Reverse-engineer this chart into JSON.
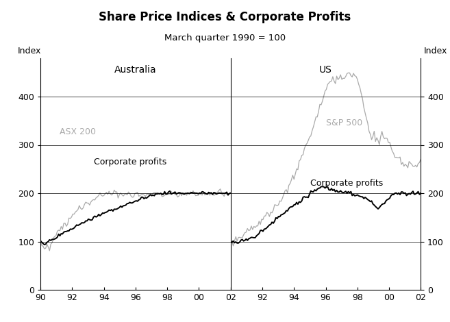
{
  "title": "Share Price Indices & Corporate Profits",
  "subtitle": "March quarter 1990 = 100",
  "color_index": "#aaaaaa",
  "color_profit": "#000000",
  "ylim": [
    0,
    480
  ],
  "yticks": [
    0,
    100,
    200,
    300,
    400
  ],
  "aus_asx200": [
    100,
    95,
    88,
    82,
    92,
    98,
    88,
    82,
    95,
    100,
    105,
    108,
    112,
    118,
    122,
    125,
    130,
    128,
    135,
    138,
    132,
    138,
    145,
    148,
    152,
    158,
    155,
    160,
    162,
    165,
    168,
    170,
    168,
    172,
    175,
    178,
    180,
    182,
    178,
    180,
    183,
    185,
    188,
    190,
    192,
    195,
    198,
    195,
    192,
    195,
    198,
    200,
    202,
    205,
    200,
    198,
    200,
    202,
    205,
    200,
    195,
    198,
    200,
    195,
    192,
    195,
    200,
    198,
    200,
    200,
    198,
    195,
    195,
    198,
    200,
    200,
    195,
    195,
    195,
    198,
    195,
    195,
    198,
    200,
    200,
    198,
    198,
    200,
    200,
    200,
    200,
    200,
    200,
    200,
    198,
    198,
    200,
    200,
    200,
    200,
    200,
    200,
    200,
    200,
    200,
    198,
    195,
    195,
    198,
    200,
    198,
    200,
    200,
    200,
    200,
    200,
    202,
    200,
    200,
    200,
    198,
    195,
    195,
    195,
    195,
    195,
    198,
    200,
    200,
    200,
    200,
    200,
    200,
    200,
    200,
    200,
    200,
    200,
    200,
    200,
    200,
    200,
    200,
    200,
    200,
    200,
    200,
    200
  ],
  "aus_corp": [
    100,
    98,
    96,
    95,
    97,
    99,
    100,
    101,
    102,
    103,
    105,
    107,
    108,
    110,
    112,
    113,
    115,
    117,
    118,
    120,
    121,
    122,
    123,
    125,
    126,
    128,
    130,
    131,
    132,
    133,
    135,
    136,
    137,
    138,
    140,
    141,
    142,
    144,
    145,
    146,
    147,
    148,
    150,
    151,
    153,
    154,
    155,
    157,
    158,
    159,
    160,
    161,
    162,
    163,
    164,
    165,
    166,
    167,
    168,
    169,
    170,
    171,
    172,
    173,
    174,
    175,
    176,
    177,
    178,
    179,
    180,
    181,
    182,
    183,
    184,
    185,
    186,
    187,
    188,
    189,
    190,
    191,
    192,
    193,
    194,
    195,
    196,
    197,
    198,
    199,
    200,
    200,
    200,
    200,
    200,
    200,
    200,
    200,
    200,
    200,
    200,
    200,
    200,
    200,
    200,
    200,
    200,
    200,
    200,
    200,
    200,
    200,
    200,
    200,
    200,
    200,
    200,
    200,
    200,
    200,
    200,
    200,
    200,
    200,
    200,
    200,
    200,
    200,
    200,
    200,
    200,
    200,
    200,
    200,
    200,
    200,
    200,
    200,
    200,
    200,
    200,
    200,
    200,
    200,
    200,
    200,
    200,
    200
  ],
  "us_sp500": [
    100,
    102,
    98,
    100,
    103,
    107,
    105,
    110,
    108,
    112,
    115,
    113,
    117,
    120,
    118,
    122,
    125,
    123,
    128,
    130,
    132,
    135,
    138,
    140,
    143,
    146,
    148,
    150,
    153,
    155,
    158,
    161,
    164,
    167,
    170,
    173,
    177,
    180,
    184,
    188,
    192,
    196,
    200,
    205,
    210,
    215,
    220,
    226,
    231,
    237,
    242,
    248,
    255,
    261,
    268,
    275,
    282,
    289,
    295,
    302,
    308,
    315,
    322,
    330,
    338,
    346,
    354,
    362,
    370,
    378,
    386,
    394,
    400,
    408,
    415,
    420,
    425,
    428,
    430,
    432,
    433,
    435,
    436,
    437,
    438,
    440,
    442,
    443,
    444,
    445,
    446,
    447,
    448,
    449,
    450,
    448,
    445,
    440,
    433,
    425,
    415,
    405,
    393,
    380,
    367,
    354,
    342,
    330,
    320,
    312,
    318,
    325,
    315,
    320,
    315,
    310,
    320,
    325,
    318,
    312,
    310,
    308,
    305,
    300,
    295,
    290,
    285,
    280,
    278,
    275,
    270,
    268,
    265,
    262,
    260,
    258,
    258,
    260,
    262,
    265,
    262,
    260,
    258,
    256,
    255,
    260,
    262,
    265
  ],
  "us_corp": [
    100,
    101,
    99,
    98,
    97,
    96,
    97,
    98,
    99,
    100,
    101,
    102,
    103,
    104,
    105,
    107,
    108,
    110,
    111,
    112,
    114,
    115,
    117,
    119,
    121,
    123,
    125,
    127,
    129,
    131,
    133,
    136,
    138,
    140,
    142,
    144,
    147,
    149,
    151,
    154,
    156,
    158,
    161,
    163,
    165,
    167,
    169,
    171,
    173,
    175,
    177,
    179,
    181,
    183,
    185,
    187,
    189,
    191,
    193,
    195,
    197,
    199,
    200,
    202,
    204,
    206,
    208,
    209,
    210,
    211,
    212,
    213,
    212,
    212,
    211,
    210,
    209,
    208,
    207,
    206,
    205,
    204,
    203,
    202,
    202,
    202,
    203,
    203,
    203,
    203,
    203,
    202,
    202,
    201,
    200,
    199,
    198,
    197,
    196,
    195,
    194,
    193,
    192,
    191,
    190,
    188,
    186,
    184,
    182,
    180,
    178,
    176,
    174,
    172,
    170,
    172,
    174,
    176,
    178,
    180,
    182,
    185,
    188,
    191,
    194,
    197,
    200,
    200,
    200,
    200,
    200,
    200,
    200,
    200,
    200,
    200,
    200,
    200,
    200,
    200,
    200,
    200,
    200,
    200,
    200,
    200,
    200,
    200
  ]
}
